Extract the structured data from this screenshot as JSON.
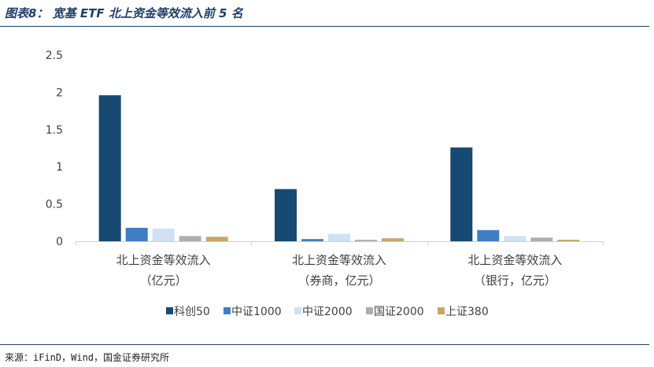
{
  "header": {
    "title": "图表8： 宽基 ETF 北上资金等效流入前 5 名"
  },
  "footer": {
    "source": "来源：iFinD，Wind，国金证券研究所"
  },
  "chart_data": {
    "type": "bar",
    "categories": [
      [
        "北上资金等效流入",
        "（亿元）"
      ],
      [
        "北上资金等效流入",
        "（券商，亿元）"
      ],
      [
        "北上资金等效流入",
        "（银行，亿元）"
      ]
    ],
    "series": [
      {
        "name": "科创50",
        "color": "#174a72",
        "values": [
          1.96,
          0.7,
          1.26
        ]
      },
      {
        "name": "中证1000",
        "color": "#3f7ec4",
        "values": [
          0.18,
          0.03,
          0.15
        ]
      },
      {
        "name": "中证2000",
        "color": "#cfe1f3",
        "values": [
          0.17,
          0.1,
          0.07
        ]
      },
      {
        "name": "国证2000",
        "color": "#aeaeae",
        "values": [
          0.07,
          0.02,
          0.05
        ]
      },
      {
        "name": "上证380",
        "color": "#c9a667",
        "values": [
          0.06,
          0.04,
          0.02
        ]
      }
    ],
    "yticks": [
      "0",
      "0.5",
      "1",
      "1.5",
      "2",
      "2.5"
    ],
    "ylim": [
      0,
      2.5
    ],
    "grid": false,
    "legend": "bottom"
  }
}
